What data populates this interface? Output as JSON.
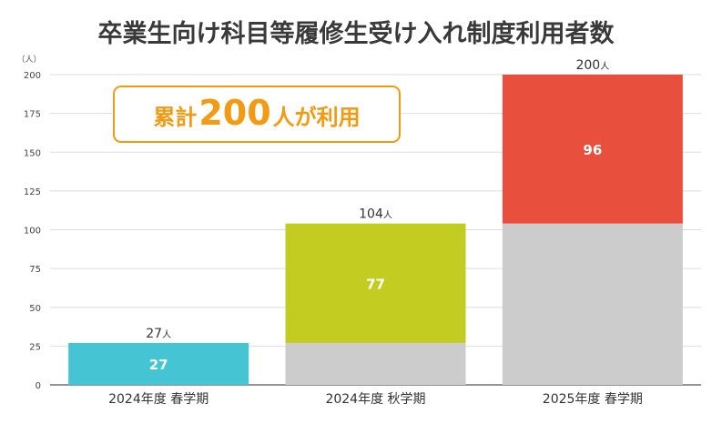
{
  "chart_data": {
    "type": "bar",
    "stacked": true,
    "title": "卒業生向け科目等履修生受け入れ制度利用者数",
    "y_unit_label": "（人）",
    "ylim": [
      0,
      200
    ],
    "yticks": [
      0,
      25,
      50,
      75,
      100,
      125,
      150,
      175,
      200
    ],
    "categories": [
      "2024年度 春学期",
      "2024年度 秋学期",
      "2025年度 春学期"
    ],
    "series": [
      {
        "values": [
          0,
          27,
          104
        ],
        "colors": [
          "#cccccc",
          "#cccccc",
          "#cccccc"
        ]
      },
      {
        "values": [
          27,
          77,
          96
        ],
        "colors": [
          "#45c5d3",
          "#c3cc21",
          "#e8503d"
        ]
      }
    ],
    "totals": [
      "27",
      "104",
      "200"
    ],
    "total_unit": "人",
    "segment_labels": [
      "27",
      "77",
      "96"
    ],
    "grid": true,
    "callout": {
      "prefix": "累計",
      "number": "200",
      "suffix": "人が利用",
      "color": "#f39a14"
    }
  }
}
